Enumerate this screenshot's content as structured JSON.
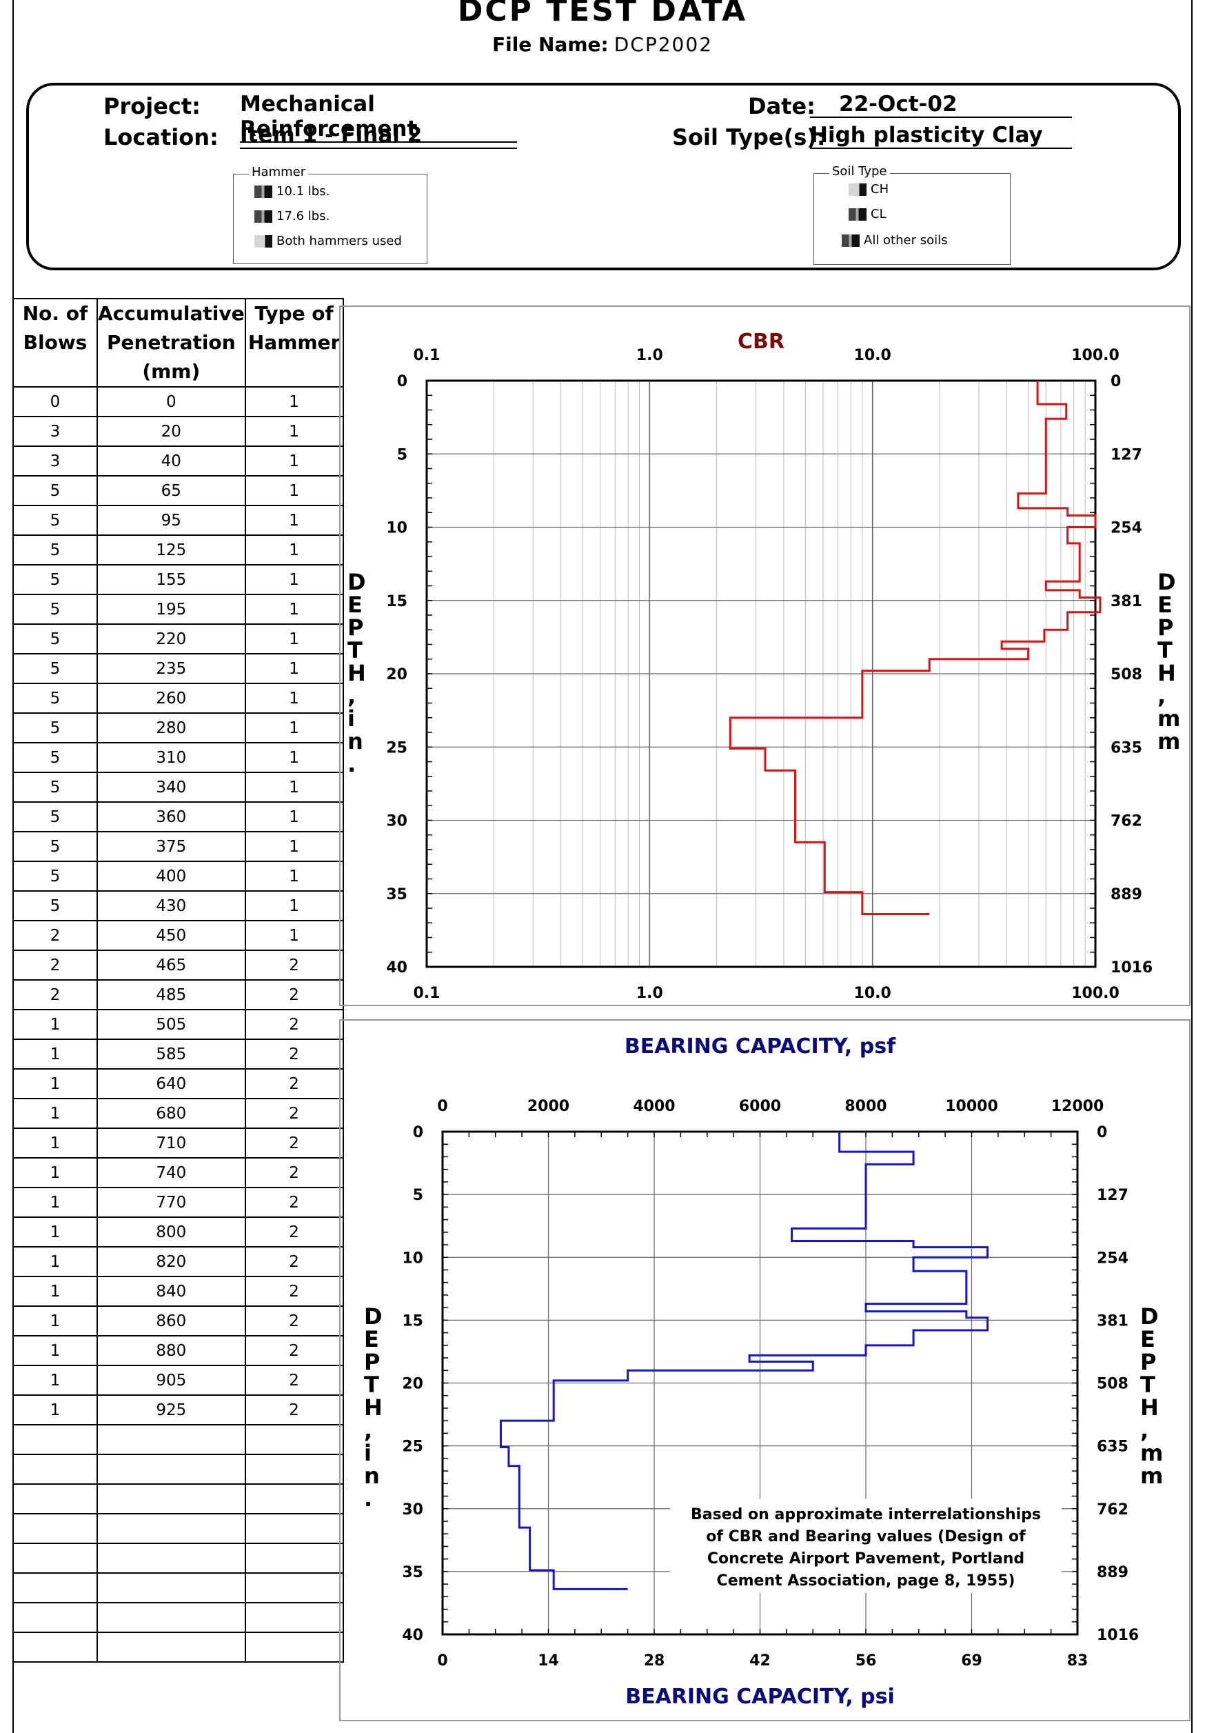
{
  "header": {
    "title": "DCP TEST DATA",
    "file_name_label": "File Name:",
    "file_name": "DCP2002"
  },
  "project": {
    "project_label": "Project:",
    "project_value": "Mechanical Reinforcement",
    "location_label": "Location:",
    "location_value": "Item 1 - Final 2",
    "date_label": "Date:",
    "date_value": "22-Oct-02",
    "soil_label": "Soil Type(s):",
    "soil_value": "High plasticity Clay"
  },
  "hammer_legend": {
    "title": "Hammer",
    "items": [
      "10.1 lbs.",
      "17.6 lbs.",
      "Both hammers used"
    ]
  },
  "soil_legend": {
    "title": "Soil Type",
    "items": [
      "CH",
      "CL",
      "All other soils"
    ]
  },
  "table": {
    "headers": [
      "No. of\nBlows",
      "Accumulative\nPenetration\n(mm)",
      "Type of\nHammer"
    ],
    "rows": [
      [
        "0",
        "0",
        "1"
      ],
      [
        "3",
        "20",
        "1"
      ],
      [
        "3",
        "40",
        "1"
      ],
      [
        "5",
        "65",
        "1"
      ],
      [
        "5",
        "95",
        "1"
      ],
      [
        "5",
        "125",
        "1"
      ],
      [
        "5",
        "155",
        "1"
      ],
      [
        "5",
        "195",
        "1"
      ],
      [
        "5",
        "220",
        "1"
      ],
      [
        "5",
        "235",
        "1"
      ],
      [
        "5",
        "260",
        "1"
      ],
      [
        "5",
        "280",
        "1"
      ],
      [
        "5",
        "310",
        "1"
      ],
      [
        "5",
        "340",
        "1"
      ],
      [
        "5",
        "360",
        "1"
      ],
      [
        "5",
        "375",
        "1"
      ],
      [
        "5",
        "400",
        "1"
      ],
      [
        "5",
        "430",
        "1"
      ],
      [
        "2",
        "450",
        "1"
      ],
      [
        "2",
        "465",
        "2"
      ],
      [
        "2",
        "485",
        "2"
      ],
      [
        "1",
        "505",
        "2"
      ],
      [
        "1",
        "585",
        "2"
      ],
      [
        "1",
        "640",
        "2"
      ],
      [
        "1",
        "680",
        "2"
      ],
      [
        "1",
        "710",
        "2"
      ],
      [
        "1",
        "740",
        "2"
      ],
      [
        "1",
        "770",
        "2"
      ],
      [
        "1",
        "800",
        "2"
      ],
      [
        "1",
        "820",
        "2"
      ],
      [
        "1",
        "840",
        "2"
      ],
      [
        "1",
        "860",
        "2"
      ],
      [
        "1",
        "880",
        "2"
      ],
      [
        "1",
        "905",
        "2"
      ],
      [
        "1",
        "925",
        "2"
      ]
    ],
    "empty_rows": 8
  },
  "colors": {
    "cbr_line": "#dd1111",
    "bearing_line": "#1515cc",
    "cbr_title": "#7a0a0a",
    "bearing_title": "#0a0a7a"
  },
  "chart_data": [
    {
      "type": "line",
      "title": "CBR",
      "ylabel_left": "DEPTH, in.",
      "ylabel_right": "DEPTH, mm",
      "x_scale": "log",
      "xlim": [
        0.1,
        100
      ],
      "x_ticks": [
        "0.1",
        "1.0",
        "10.0",
        "100.0"
      ],
      "ylim": [
        0,
        40
      ],
      "y_ticks_left": [
        "0",
        "5",
        "10",
        "15",
        "20",
        "25",
        "30",
        "35",
        "40"
      ],
      "y_ticks_right": [
        "0",
        "127",
        "254",
        "381",
        "508",
        "635",
        "762",
        "889",
        "1016"
      ],
      "grid": true,
      "series": [
        {
          "step": true,
          "depth_in": [
            0,
            1.6,
            2.6,
            6.0,
            7.7,
            8.7,
            9.2,
            10.0,
            11.1,
            13.7,
            14.3,
            14.8,
            15.8,
            17.0,
            17.8,
            18.3,
            19.0,
            19.8,
            23.0,
            25.1,
            26.6,
            31.5,
            34.9,
            36.4
          ],
          "cbr": [
            55,
            74,
            60,
            60,
            45,
            75,
            100,
            75,
            85,
            60,
            85,
            105,
            75,
            59,
            38,
            50,
            18,
            9,
            2.3,
            3.3,
            4.5,
            6.1,
            9,
            18
          ]
        }
      ]
    },
    {
      "type": "line",
      "title": "BEARING CAPACITY, psf",
      "xlabel": "BEARING CAPACITY, psi",
      "ylabel_left": "DEPTH, in.",
      "ylabel_right": "DEPTH, mm",
      "xlim": [
        0,
        12000
      ],
      "x_ticks_top": [
        "0",
        "2000",
        "4000",
        "6000",
        "8000",
        "10000",
        "12000"
      ],
      "x_ticks_bottom": [
        "0",
        "14",
        "28",
        "42",
        "56",
        "69",
        "83"
      ],
      "ylim": [
        0,
        40
      ],
      "y_ticks_left": [
        "0",
        "5",
        "10",
        "15",
        "20",
        "25",
        "30",
        "35",
        "40"
      ],
      "y_ticks_right": [
        "0",
        "127",
        "254",
        "381",
        "508",
        "635",
        "762",
        "889",
        "1016"
      ],
      "grid": true,
      "annotation": "Based on approximate interrelationships\nof CBR and Bearing values (Design of\nConcrete Airport Pavement, Portland\nCement Association, page 8, 1955)",
      "series": [
        {
          "step": true,
          "depth_in": [
            0,
            1.6,
            2.6,
            6.0,
            7.7,
            8.7,
            9.2,
            10.0,
            11.1,
            13.7,
            14.3,
            14.8,
            15.8,
            17.0,
            17.8,
            18.3,
            19.0,
            19.8,
            23.0,
            25.1,
            26.6,
            31.5,
            34.9,
            36.4
          ],
          "psf": [
            7500,
            8900,
            8000,
            8000,
            6600,
            8900,
            10300,
            8900,
            9900,
            8000,
            9900,
            10300,
            8900,
            8000,
            5800,
            7000,
            3500,
            2100,
            1100,
            1250,
            1450,
            1650,
            2100,
            3500
          ]
        }
      ]
    }
  ]
}
